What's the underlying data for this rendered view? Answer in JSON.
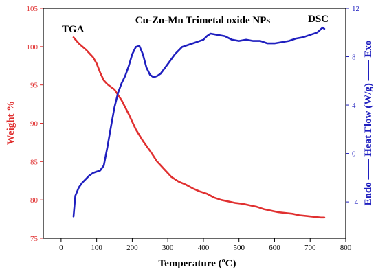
{
  "chart_data": {
    "type": "line",
    "title": "Cu-Zn-Mn Trimetal oxide NPs",
    "xlabel_main": "Temperature (",
    "xlabel_sup": "o",
    "xlabel_tail": "C)",
    "ylabel_left": "Weight %",
    "ylabel_right": "Endo —— Heat Flow (W/g) —— Exo",
    "xlim": [
      -50,
      800
    ],
    "ylim_left": [
      75,
      105
    ],
    "ylim_right": [
      -7,
      12
    ],
    "x_ticks": [
      0,
      100,
      200,
      300,
      400,
      500,
      600,
      700,
      800
    ],
    "y_left_ticks": [
      75,
      80,
      85,
      90,
      95,
      100,
      105
    ],
    "y_right_ticks": [
      -4,
      0,
      4,
      8,
      12
    ],
    "colors": {
      "tga": "#e03030",
      "dsc": "#1f1fbf",
      "frame": "#000000"
    },
    "annotations": {
      "tga": "TGA",
      "dsc": "DSC"
    },
    "series": [
      {
        "key": "tga",
        "axis": "left",
        "x": [
          35,
          50,
          70,
          90,
          100,
          110,
          120,
          130,
          150,
          170,
          190,
          210,
          230,
          250,
          270,
          290,
          310,
          330,
          350,
          370,
          390,
          410,
          430,
          450,
          470,
          490,
          510,
          530,
          550,
          570,
          590,
          610,
          630,
          650,
          670,
          690,
          710,
          730,
          740
        ],
        "y": [
          101.2,
          100.4,
          99.6,
          98.6,
          97.8,
          96.6,
          95.6,
          95.1,
          94.4,
          93.0,
          91.2,
          89.2,
          87.7,
          86.4,
          85.0,
          84.0,
          83.0,
          82.4,
          82.0,
          81.5,
          81.1,
          80.8,
          80.3,
          80.0,
          79.8,
          79.6,
          79.5,
          79.3,
          79.1,
          78.8,
          78.6,
          78.4,
          78.3,
          78.2,
          78.0,
          77.9,
          77.8,
          77.7,
          77.7
        ]
      },
      {
        "key": "dsc",
        "axis": "right",
        "x": [
          35,
          40,
          50,
          60,
          70,
          80,
          90,
          100,
          110,
          120,
          130,
          140,
          150,
          160,
          170,
          180,
          190,
          200,
          210,
          220,
          230,
          240,
          250,
          260,
          270,
          280,
          290,
          300,
          320,
          340,
          360,
          380,
          400,
          410,
          420,
          440,
          460,
          480,
          500,
          520,
          540,
          560,
          580,
          600,
          620,
          640,
          660,
          680,
          700,
          720,
          735,
          740
        ],
        "y": [
          -5.2,
          -3.5,
          -2.8,
          -2.4,
          -2.1,
          -1.8,
          -1.6,
          -1.5,
          -1.4,
          -1.0,
          0.5,
          2.2,
          3.8,
          5.0,
          5.8,
          6.4,
          7.2,
          8.2,
          8.8,
          8.9,
          8.2,
          7.1,
          6.5,
          6.3,
          6.4,
          6.6,
          7.0,
          7.4,
          8.2,
          8.8,
          9.0,
          9.2,
          9.4,
          9.7,
          9.9,
          9.8,
          9.7,
          9.4,
          9.3,
          9.4,
          9.3,
          9.3,
          9.1,
          9.1,
          9.2,
          9.3,
          9.5,
          9.6,
          9.8,
          10.0,
          10.4,
          10.3
        ]
      }
    ]
  }
}
